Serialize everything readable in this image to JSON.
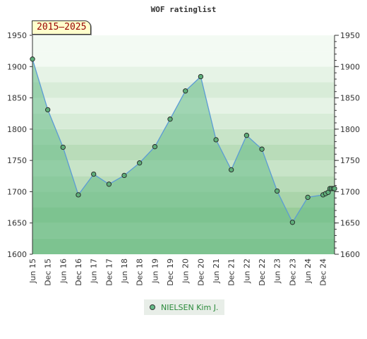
{
  "chart_data": {
    "type": "area",
    "title": "WOF ratinglist",
    "period_label": "2015–2025",
    "ylim": [
      1600,
      1950
    ],
    "yticks": [
      1600,
      1650,
      1700,
      1750,
      1800,
      1850,
      1900,
      1950
    ],
    "x_tick_labels": [
      "Jun 15",
      "Dec 15",
      "Jun 16",
      "Dec 16",
      "Jun 17",
      "Dec 17",
      "Jun 18",
      "Dec 18",
      "Jun 19",
      "Dec 19",
      "Jun 20",
      "Dec 20",
      "Jun 21",
      "Dec 21",
      "Jun 22",
      "Dec 22",
      "Jun 23",
      "Dec 23",
      "Jun 24",
      "Dec 24"
    ],
    "x_range_months": [
      0,
      118.5
    ],
    "grid": true,
    "legend_position": "bottom-center",
    "series": [
      {
        "name": "NIELSEN Kim J.",
        "color": "#5b9bd5",
        "fill_color": "#66bb88",
        "points": [
          {
            "t": 0,
            "v": 1912
          },
          {
            "t": 6,
            "v": 1831
          },
          {
            "t": 12,
            "v": 1771
          },
          {
            "t": 18,
            "v": 1695
          },
          {
            "t": 24,
            "v": 1728
          },
          {
            "t": 30,
            "v": 1712
          },
          {
            "t": 36,
            "v": 1726
          },
          {
            "t": 42,
            "v": 1746
          },
          {
            "t": 48,
            "v": 1772
          },
          {
            "t": 54,
            "v": 1816
          },
          {
            "t": 60,
            "v": 1861
          },
          {
            "t": 66,
            "v": 1884
          },
          {
            "t": 72,
            "v": 1783
          },
          {
            "t": 78,
            "v": 1735
          },
          {
            "t": 84,
            "v": 1790
          },
          {
            "t": 90,
            "v": 1768
          },
          {
            "t": 96,
            "v": 1701
          },
          {
            "t": 102,
            "v": 1651
          },
          {
            "t": 108,
            "v": 1691
          },
          {
            "t": 114,
            "v": 1695
          },
          {
            "t": 115,
            "v": 1697
          },
          {
            "t": 116,
            "v": 1699
          },
          {
            "t": 116.7,
            "v": 1705
          },
          {
            "t": 117.3,
            "v": 1705
          },
          {
            "t": 118,
            "v": 1705
          },
          {
            "t": 118.5,
            "v": 1705
          }
        ]
      }
    ]
  }
}
